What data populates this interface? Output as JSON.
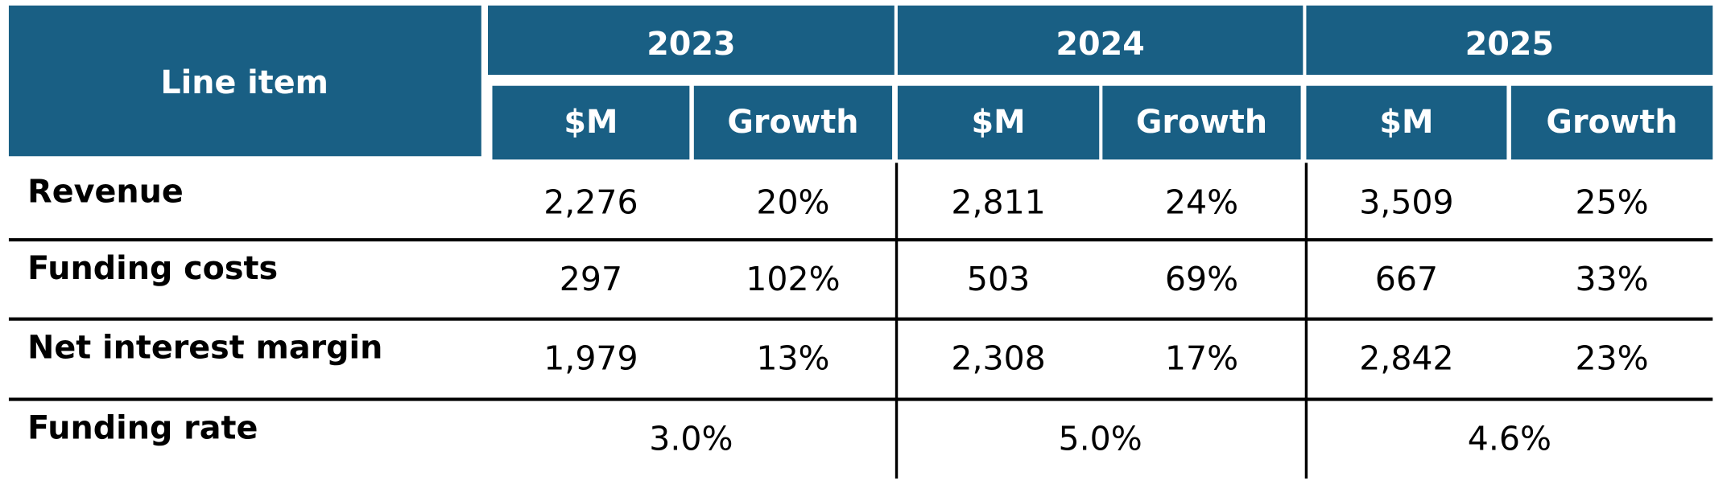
{
  "table": {
    "header": {
      "line_item": "Line item",
      "years": [
        {
          "year": "2023",
          "columns": [
            "$M",
            "Growth"
          ]
        },
        {
          "year": "2024",
          "columns": [
            "$M",
            "Growth"
          ]
        },
        {
          "year": "2025",
          "columns": [
            "$M",
            "Growth"
          ]
        }
      ]
    },
    "rows": [
      {
        "label": "Revenue",
        "cells": [
          "2,276",
          "20%",
          "2,811",
          "24%",
          "3,509",
          "25%"
        ]
      },
      {
        "label": "Funding costs",
        "cells": [
          "297",
          "102%",
          "503",
          "69%",
          "667",
          "33%"
        ]
      },
      {
        "label": "Net interest margin",
        "cells": [
          "1,979",
          "13%",
          "2,308",
          "17%",
          "2,842",
          "23%"
        ]
      },
      {
        "label": "Funding rate",
        "cells": [
          "3.0%",
          "5.0%",
          "4.6%"
        ]
      }
    ]
  }
}
